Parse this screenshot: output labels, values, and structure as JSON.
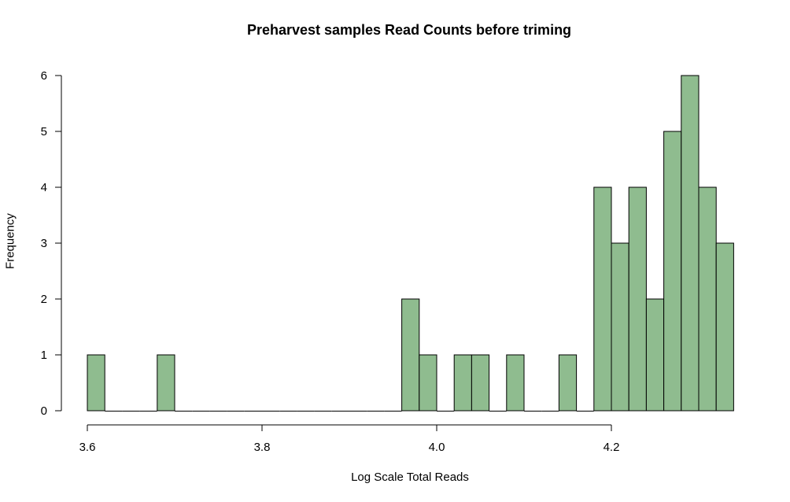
{
  "chart_data": {
    "type": "bar",
    "title": "Preharvest samples Read Counts before triming",
    "xlabel": "Log Scale Total Reads",
    "ylabel": "Frequency",
    "bin_width": 0.02,
    "bins": [
      {
        "start": 3.6,
        "count": 1
      },
      {
        "start": 3.62,
        "count": 0
      },
      {
        "start": 3.64,
        "count": 0
      },
      {
        "start": 3.66,
        "count": 0
      },
      {
        "start": 3.68,
        "count": 1
      },
      {
        "start": 3.7,
        "count": 0
      },
      {
        "start": 3.72,
        "count": 0
      },
      {
        "start": 3.74,
        "count": 0
      },
      {
        "start": 3.76,
        "count": 0
      },
      {
        "start": 3.78,
        "count": 0
      },
      {
        "start": 3.8,
        "count": 0
      },
      {
        "start": 3.82,
        "count": 0
      },
      {
        "start": 3.84,
        "count": 0
      },
      {
        "start": 3.86,
        "count": 0
      },
      {
        "start": 3.88,
        "count": 0
      },
      {
        "start": 3.9,
        "count": 0
      },
      {
        "start": 3.92,
        "count": 0
      },
      {
        "start": 3.94,
        "count": 0
      },
      {
        "start": 3.96,
        "count": 2
      },
      {
        "start": 3.98,
        "count": 1
      },
      {
        "start": 4.0,
        "count": 0
      },
      {
        "start": 4.02,
        "count": 1
      },
      {
        "start": 4.04,
        "count": 1
      },
      {
        "start": 4.06,
        "count": 0
      },
      {
        "start": 4.08,
        "count": 1
      },
      {
        "start": 4.1,
        "count": 0
      },
      {
        "start": 4.12,
        "count": 0
      },
      {
        "start": 4.14,
        "count": 1
      },
      {
        "start": 4.16,
        "count": 0
      },
      {
        "start": 4.18,
        "count": 4
      },
      {
        "start": 4.2,
        "count": 3
      },
      {
        "start": 4.22,
        "count": 4
      },
      {
        "start": 4.24,
        "count": 2
      },
      {
        "start": 4.26,
        "count": 5
      },
      {
        "start": 4.28,
        "count": 6
      },
      {
        "start": 4.3,
        "count": 4
      },
      {
        "start": 4.32,
        "count": 3
      }
    ],
    "x_ticks": [
      "3.6",
      "3.8",
      "4.0",
      "4.2"
    ],
    "y_ticks": [
      "0",
      "1",
      "2",
      "3",
      "4",
      "5",
      "6"
    ],
    "xlim": [
      3.6,
      4.34
    ],
    "ylim": [
      0,
      6
    ],
    "bar_color": "#8fbc8f",
    "grid": false
  }
}
